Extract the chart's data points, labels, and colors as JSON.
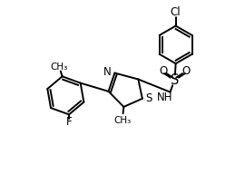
{
  "background_color": "#ffffff",
  "line_color": "#000000",
  "line_width": 1.4,
  "font_size": 8.5,
  "figsize": [
    2.7,
    1.92
  ],
  "dpi": 100,
  "xlim": [
    0,
    10
  ],
  "ylim": [
    0,
    7.2
  ]
}
